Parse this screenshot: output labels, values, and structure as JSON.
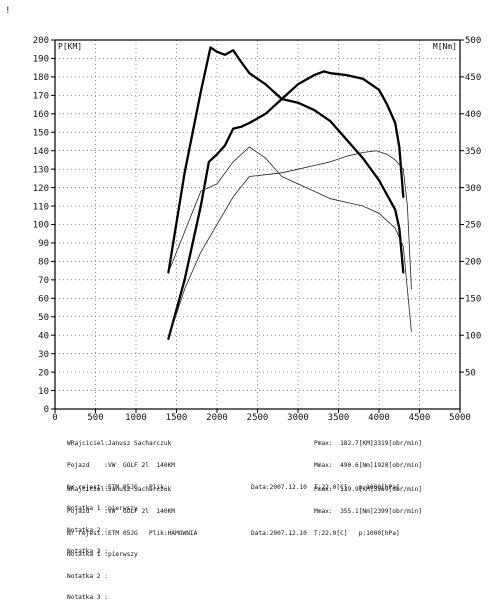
{
  "corner_mark": "!",
  "chart_data": {
    "type": "line",
    "xlim": [
      0,
      5000
    ],
    "ylim_left": [
      0,
      200
    ],
    "ylim_right": [
      0,
      500
    ],
    "left_axis_label": "P[KM]",
    "right_axis_label": "M[Nm]",
    "x_ticks": [
      "0",
      "500",
      "1000",
      "1500",
      "2000",
      "2500",
      "3000",
      "3500",
      "4000",
      "4500",
      "5000"
    ],
    "y_left_ticks": [
      "0",
      "10",
      "20",
      "30",
      "40",
      "50",
      "60",
      "70",
      "80",
      "90",
      "100",
      "110",
      "120",
      "130",
      "140",
      "150",
      "160",
      "170",
      "180",
      "190",
      "200"
    ],
    "y_right_ticks": [
      "50",
      "100",
      "150",
      "200",
      "250",
      "300",
      "350",
      "400",
      "450",
      "500"
    ],
    "grid": true,
    "series": [
      {
        "axis": "left",
        "weight": "bold",
        "color": "#000000",
        "x": [
          1400,
          1600,
          1800,
          1900,
          2000,
          2100,
          2200,
          2300,
          2400,
          2600,
          2800,
          3000,
          3200,
          3319,
          3400,
          3600,
          3800,
          4000,
          4100,
          4200,
          4250,
          4300
        ],
        "y": [
          38,
          70,
          110,
          134,
          138,
          143,
          152,
          153,
          155,
          160,
          168,
          176,
          181,
          183,
          182,
          181,
          179,
          173,
          165,
          155,
          142,
          115
        ]
      },
      {
        "axis": "right",
        "weight": "bold",
        "color": "#000000",
        "x": [
          1400,
          1600,
          1800,
          1920,
          2000,
          2100,
          2200,
          2300,
          2400,
          2600,
          2800,
          3000,
          3200,
          3400,
          3600,
          3800,
          4000,
          4200,
          4250,
          4300
        ],
        "y": [
          185,
          320,
          430,
          490,
          484,
          480,
          486,
          470,
          455,
          440,
          420,
          415,
          405,
          390,
          365,
          340,
          310,
          270,
          245,
          185
        ]
      },
      {
        "axis": "left",
        "weight": "thin",
        "color": "#222222",
        "x": [
          1400,
          1600,
          1800,
          2000,
          2200,
          2400,
          2600,
          2800,
          3000,
          3200,
          3400,
          3600,
          3800,
          3969,
          4100,
          4200,
          4300,
          4350,
          4400
        ],
        "y": [
          38,
          65,
          85,
          100,
          115,
          126,
          127,
          128,
          130,
          132,
          134,
          137,
          139,
          140,
          138,
          135,
          130,
          110,
          65
        ]
      },
      {
        "axis": "right",
        "weight": "thin",
        "color": "#222222",
        "x": [
          1400,
          1600,
          1800,
          2000,
          2200,
          2399,
          2600,
          2800,
          3000,
          3200,
          3400,
          3600,
          3800,
          4000,
          4200,
          4300,
          4400
        ],
        "y": [
          185,
          240,
          295,
          305,
          335,
          355,
          340,
          315,
          305,
          295,
          285,
          280,
          275,
          265,
          245,
          220,
          105
        ]
      }
    ]
  },
  "info_blocks": [
    {
      "lines": [
        "WRajciciel:Janusz Sacharczuk",
        "Pojazd    :VW  GOLF 2l  140KM",
        "Nr rejest.:ETM 05JG   Plik:",
        "Notatka 1 :pierwszy",
        "Notatka 2 :",
        "Notatka 3 :"
      ],
      "data_label": "Data:2007.12.10",
      "right": [
        "Pmax:  182.7[KM]3319[obr/min]",
        "Mmax:  490.6[Nm]1920[obr/min]",
        "T:22.0[C]   p:1000[hPa]"
      ]
    },
    {
      "lines": [
        "WRajciciel:Janusz Sacharczuk",
        "Pojazd    :VW  GOLF 2l  140KM",
        "Nr rejest.:ETM 05JG   Plik:HAMOWNIA",
        "Notatka 1 :pierwszy",
        "Notatka 2 :",
        "Notatka 3 :"
      ],
      "data_label": "Data:2007.12.10",
      "right": [
        "Pmax:  139.9[KM]3969[obr/min]",
        "Mmax:  355.1[Nm]2399[obr/min]",
        "T:22.0[C]   p:1000[hPa]"
      ]
    }
  ]
}
